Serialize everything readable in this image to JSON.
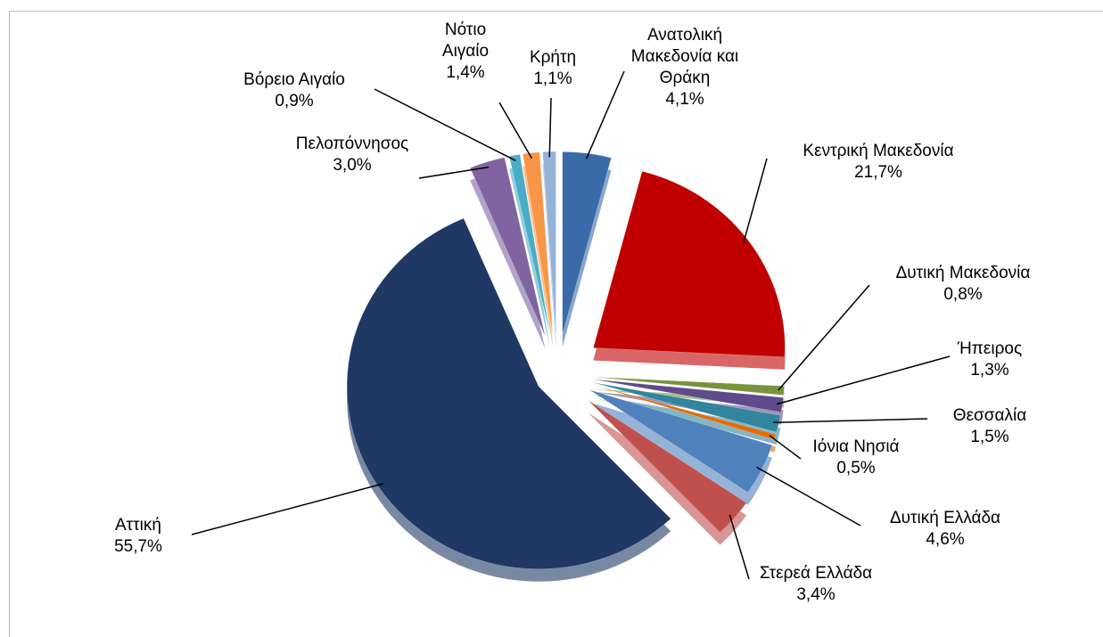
{
  "chart_data": {
    "type": "pie",
    "categories": [
      "Ανατολική Μακεδονία και Θράκη",
      "Κεντρική Μακεδονία",
      "Δυτική Μακεδονία",
      "Ήπειρος",
      "Θεσσαλία",
      "Ιόνια Νησιά",
      "Δυτική Ελλάδα",
      "Στερεά Ελλάδα",
      "Αττική",
      "Πελοπόννησος",
      "Βόρειο Αιγαίο",
      "Νότιο Αιγαίο",
      "Κρήτη"
    ],
    "values": [
      4.1,
      21.7,
      0.8,
      1.3,
      1.5,
      0.5,
      4.6,
      3.4,
      55.7,
      3.0,
      0.9,
      1.4,
      1.1
    ],
    "value_labels": [
      "4,1%",
      "21,7%",
      "0,8%",
      "1,3%",
      "1,5%",
      "0,5%",
      "4,6%",
      "3,4%",
      "55,7%",
      "3,0%",
      "0,9%",
      "1,4%",
      "1,1%"
    ],
    "colors": [
      "#3a6aa8",
      "#c00000",
      "#77933c",
      "#5f4b8b",
      "#31859c",
      "#e46c0a",
      "#4f81bd",
      "#c0504d",
      "#1f3864",
      "#8064a2",
      "#4bacc6",
      "#f79646",
      "#95b3d7"
    ]
  }
}
